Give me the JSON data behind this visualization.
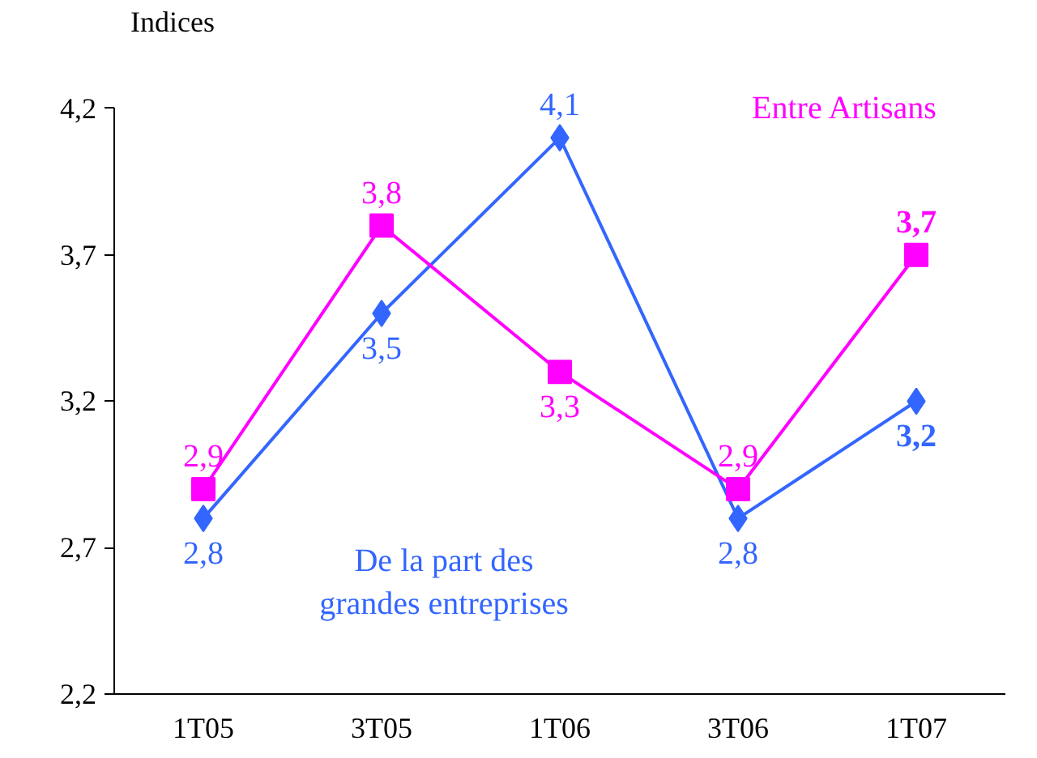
{
  "chart_data": {
    "type": "line",
    "ylabel": "Indices",
    "categories": [
      "1T05",
      "3T05",
      "1T06",
      "3T06",
      "1T07"
    ],
    "series": [
      {
        "name": "De la part des grandes entreprises",
        "color": "#3366ff",
        "marker": "diamond",
        "values": [
          2.8,
          3.5,
          4.1,
          2.8,
          3.2
        ],
        "value_labels": [
          "2,8",
          "3,5",
          "4,1",
          "2,8",
          "3,2"
        ]
      },
      {
        "name": "Entre Artisans",
        "color": "#ff00ff",
        "marker": "square",
        "values": [
          2.9,
          3.8,
          3.3,
          2.9,
          3.7
        ],
        "value_labels": [
          "2,9",
          "3,8",
          "3,3",
          "2,9",
          "3,7"
        ]
      }
    ],
    "ylim": [
      2.2,
      4.2
    ],
    "yticks": [
      {
        "value": 2.2,
        "label": "2,2"
      },
      {
        "value": 2.7,
        "label": "2,7"
      },
      {
        "value": 3.2,
        "label": "3,2"
      },
      {
        "value": 3.7,
        "label": "3,7"
      },
      {
        "value": 4.2,
        "label": "4,2"
      }
    ],
    "grid": false,
    "line_style": "solid"
  }
}
